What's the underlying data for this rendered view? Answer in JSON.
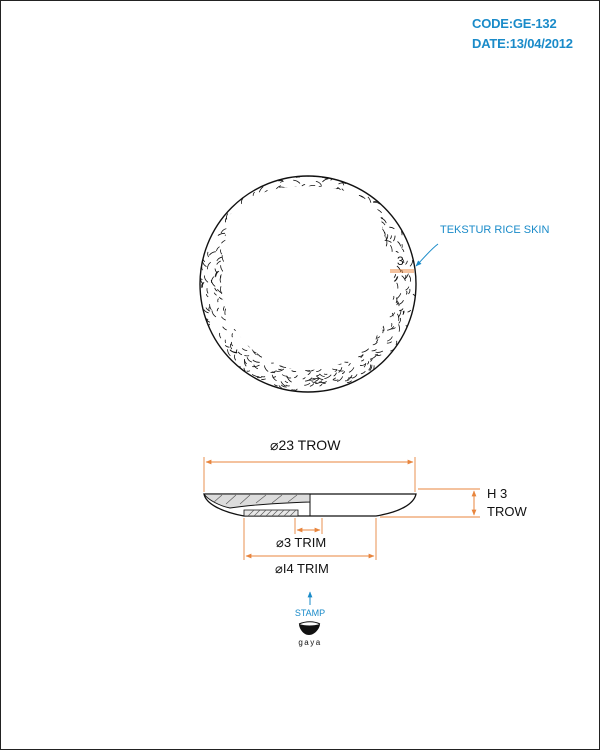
{
  "header": {
    "code": "CODE:GE-132",
    "date": "DATE:13/04/2012"
  },
  "top_view": {
    "texture_label": "TEKSTUR RICE SKIN",
    "rim_dimension": "3"
  },
  "side_view": {
    "overall_diameter": "23 TROW",
    "height_line1": "H 3",
    "height_line2": "TROW",
    "inner_diameter": "3 TRIM",
    "base_diameter": "I4 TRIM",
    "diameter_symbol": "⌀"
  },
  "stamp": {
    "label": "STAMP",
    "brand": "gaya"
  },
  "colors": {
    "accent_blue": "#1a8bc9",
    "dimension_orange": "#e8853d",
    "line": "#111111"
  }
}
